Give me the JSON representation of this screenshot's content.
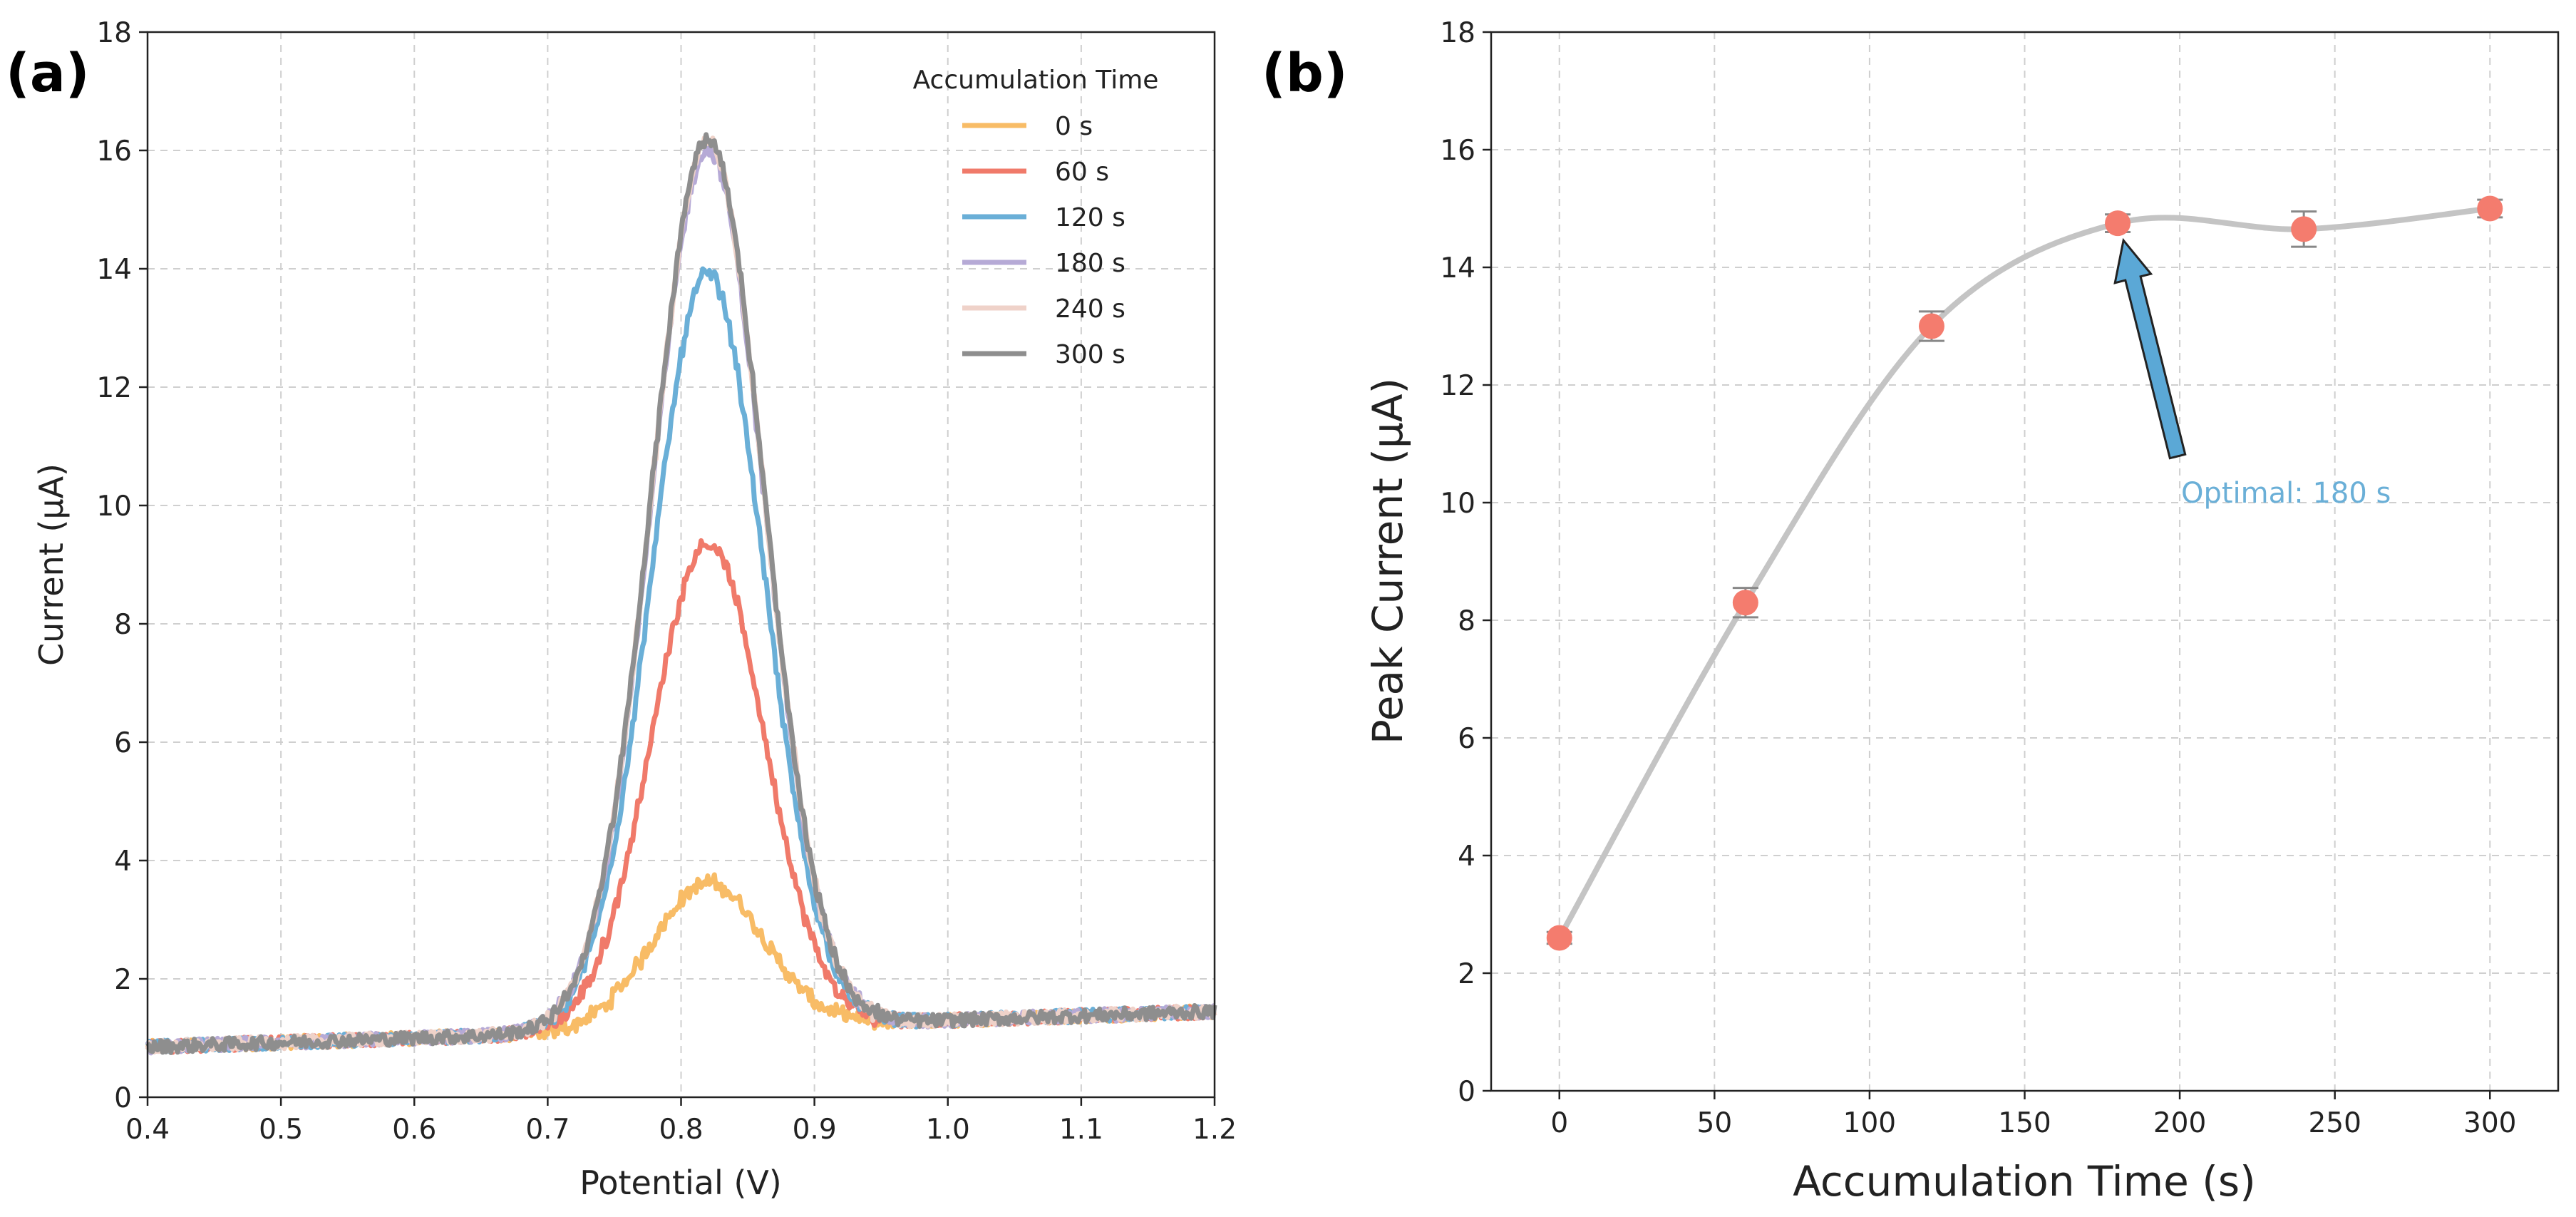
{
  "panels": {
    "a": "(a)",
    "b": "(b)"
  },
  "colors": {
    "0 s": "#F8BC66",
    "60 s": "#F07A6A",
    "120 s": "#6AAFD7",
    "180 s": "#B6AAD6",
    "240 s": "#EFD2C9",
    "300 s": "#8E8E8E",
    "marker": "#F47C6E",
    "fit": "#c4c4c4",
    "arrow": "#5BA8D6",
    "annotation": "#6AAFD7"
  },
  "chart_data": [
    {
      "type": "line",
      "title": "",
      "xlabel": "Potential (V)",
      "ylabel": "Current (μA)",
      "xlim": [
        0.4,
        1.2
      ],
      "ylim": [
        0,
        18
      ],
      "xticks": [
        "0.4",
        "0.5",
        "0.6",
        "0.7",
        "0.8",
        "0.9",
        "1.0",
        "1.1",
        "1.2"
      ],
      "yticks": [
        "0",
        "2",
        "4",
        "6",
        "8",
        "10",
        "12",
        "14",
        "16",
        "18"
      ],
      "grid": true,
      "legend": {
        "title": "Accumulation Time",
        "position": "top-right"
      },
      "peak_potential": 0.82,
      "series": [
        {
          "name": "0 s",
          "peak": 3.65,
          "baseline_start": 0.85,
          "baseline_end": 1.45
        },
        {
          "name": "60 s",
          "peak": 9.4,
          "baseline_start": 0.85,
          "baseline_end": 1.45
        },
        {
          "name": "120 s",
          "peak": 13.95,
          "baseline_start": 0.85,
          "baseline_end": 1.45
        },
        {
          "name": "180 s",
          "peak": 16.05,
          "baseline_start": 0.85,
          "baseline_end": 1.45
        },
        {
          "name": "240 s",
          "peak": 16.2,
          "baseline_start": 0.85,
          "baseline_end": 1.45
        },
        {
          "name": "300 s",
          "peak": 16.25,
          "baseline_start": 0.85,
          "baseline_end": 1.45
        }
      ]
    },
    {
      "type": "scatter",
      "title": "",
      "xlabel": "Accumulation Time (s)",
      "ylabel": "Peak Current (μA)",
      "xlim": [
        -22,
        322
      ],
      "ylim": [
        0,
        18
      ],
      "xticks": [
        "0",
        "50",
        "100",
        "150",
        "200",
        "250",
        "300"
      ],
      "yticks": [
        "0",
        "2",
        "4",
        "6",
        "8",
        "10",
        "12",
        "14",
        "16",
        "18"
      ],
      "grid": true,
      "x": [
        0,
        60,
        120,
        180,
        240,
        300
      ],
      "y": [
        2.6,
        8.3,
        13.0,
        14.75,
        14.65,
        15.0
      ],
      "error": [
        0.1,
        0.25,
        0.25,
        0.15,
        0.3,
        0.15
      ],
      "fit_line": "smooth",
      "annotation": {
        "text": "Optimal: 180 s",
        "x": 180,
        "y": 14.75
      }
    }
  ]
}
